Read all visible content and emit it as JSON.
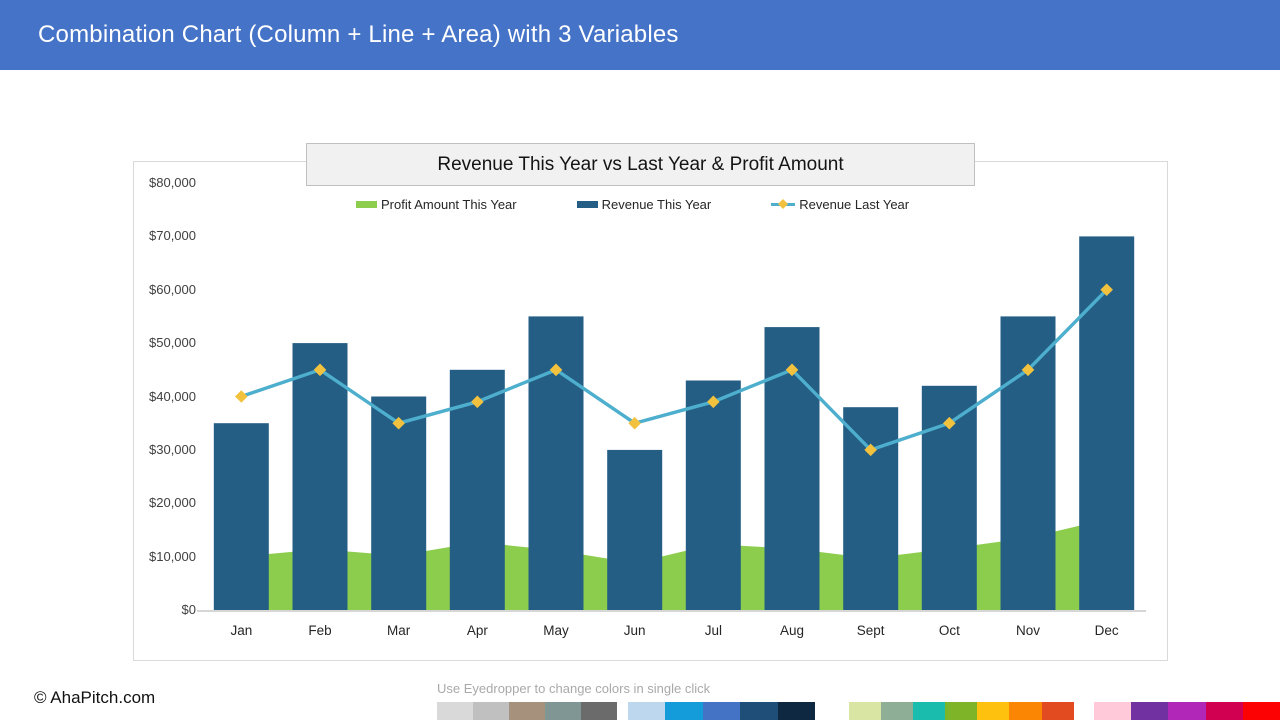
{
  "header": {
    "title": "Combination Chart (Column + Line + Area) with 3 Variables"
  },
  "chart_data": {
    "type": "combo",
    "title": "Revenue This Year vs Last Year & Profit Amount",
    "categories": [
      "Jan",
      "Feb",
      "Mar",
      "Apr",
      "May",
      "Jun",
      "Jul",
      "Aug",
      "Sept",
      "Oct",
      "Nov",
      "Dec"
    ],
    "series": [
      {
        "name": "Profit Amount This Year",
        "type": "area",
        "color": "#8ccd4e",
        "values": [
          10000,
          11400,
          10200,
          12700,
          11200,
          8800,
          12300,
          11500,
          9700,
          11500,
          13500,
          17000
        ]
      },
      {
        "name": "Revenue This Year",
        "type": "column",
        "color": "#245e85",
        "values": [
          35000,
          50000,
          40000,
          45000,
          55000,
          30000,
          43000,
          53000,
          38000,
          42000,
          55000,
          70000
        ]
      },
      {
        "name": "Revenue Last Year",
        "type": "line",
        "color": "#4dafcd",
        "marker": "diamond",
        "marker_color": "#f2c13d",
        "values": [
          40000,
          45000,
          35000,
          39000,
          45000,
          35000,
          39000,
          45000,
          30000,
          35000,
          45000,
          60000
        ]
      }
    ],
    "ylim": [
      0,
      80000
    ],
    "ytick_step": 10000,
    "ytick_labels_top_to_bottom": [
      "$80,000",
      "$70,000",
      "$60,000",
      "$50,000",
      "$40,000",
      "$30,000",
      "$20,000",
      "$10,000",
      "$0"
    ],
    "xlabel": "",
    "ylabel": "",
    "grid": false,
    "legend_position": "top"
  },
  "footer": {
    "copyright": "© AhaPitch.com",
    "eyedropper_hint": "Use Eyedropper to change colors in single click",
    "swatch_groups": [
      [
        "#d9d9d9",
        "#c0c0c0",
        "#a6917d",
        "#7f9695",
        "#6b6b6b"
      ],
      [
        "#bdd7ee",
        "#149cda",
        "#4472c4",
        "#1f4e79",
        "#0e2841"
      ],
      [
        "#d9e5a3",
        "#8fae96",
        "#1abcad",
        "#7db428",
        "#fec10d",
        "#fb8604",
        "#e24b20"
      ],
      [
        "#ffc9d9",
        "#7131a1",
        "#b128b9",
        "#d10051",
        "#fd0202"
      ]
    ]
  }
}
